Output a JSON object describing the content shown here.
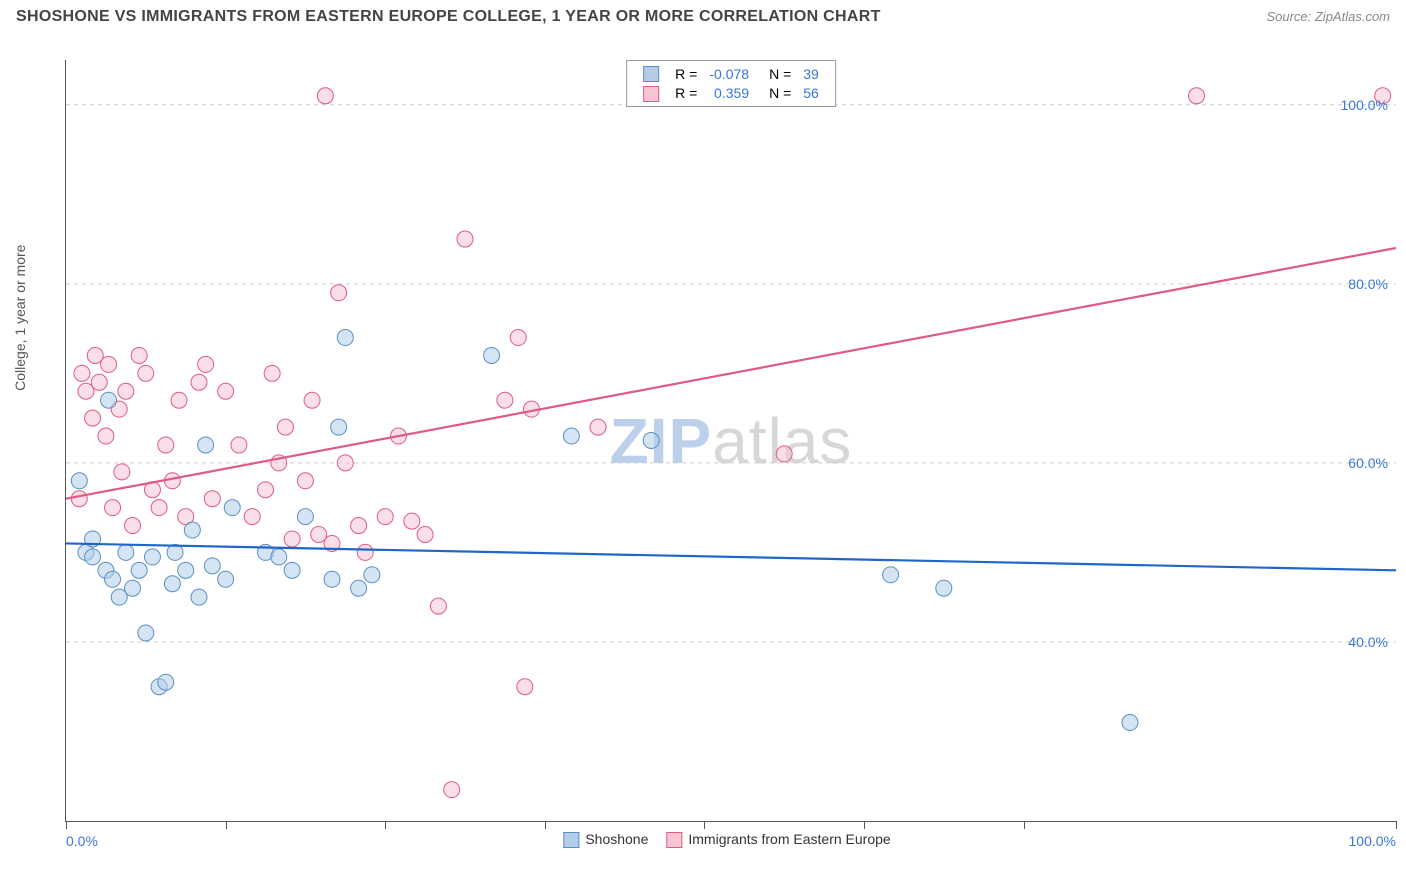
{
  "title": "SHOSHONE VS IMMIGRANTS FROM EASTERN EUROPE COLLEGE, 1 YEAR OR MORE CORRELATION CHART",
  "source": "Source: ZipAtlas.com",
  "ylabel": "College, 1 year or more",
  "watermark_a": "ZIP",
  "watermark_b": "atlas",
  "colors": {
    "series_a_fill": "#b3cde8",
    "series_a_stroke": "#5a8fc7",
    "series_a_line": "#1f66c7",
    "series_b_fill": "#f6c6d2",
    "series_b_stroke": "#e05a86",
    "series_b_line": "#e05a86",
    "grid": "#cccccc",
    "axis": "#555555",
    "tick_text": "#3a76d6",
    "watermark_a": "#bcd0ec",
    "watermark_b": "#d7d7d7"
  },
  "marker_radius": 8,
  "marker_opacity": 0.55,
  "x_domain": [
    0,
    100
  ],
  "y_domain": [
    20,
    105
  ],
  "y_ticks": [
    {
      "v": 40,
      "label": "40.0%"
    },
    {
      "v": 60,
      "label": "60.0%"
    },
    {
      "v": 80,
      "label": "80.0%"
    },
    {
      "v": 100,
      "label": "100.0%"
    }
  ],
  "x_ticks": [
    {
      "v": 0,
      "label": "0.0%"
    },
    {
      "v": 12,
      "label": ""
    },
    {
      "v": 24,
      "label": ""
    },
    {
      "v": 36,
      "label": ""
    },
    {
      "v": 48,
      "label": ""
    },
    {
      "v": 60,
      "label": ""
    },
    {
      "v": 72,
      "label": ""
    },
    {
      "v": 100,
      "label": "100.0%"
    }
  ],
  "legend_top": [
    {
      "sw": "a",
      "r_label": "R =",
      "r_val": "-0.078",
      "n_label": "N =",
      "n_val": "39"
    },
    {
      "sw": "b",
      "r_label": "R =",
      "r_val": "0.359",
      "n_label": "N =",
      "n_val": "56"
    }
  ],
  "legend_bottom": [
    {
      "sw": "a",
      "label": "Shoshone"
    },
    {
      "sw": "b",
      "label": "Immigrants from Eastern Europe"
    }
  ],
  "series_a_points": [
    [
      1,
      58
    ],
    [
      1.5,
      50
    ],
    [
      2,
      51.5
    ],
    [
      2,
      49.5
    ],
    [
      3,
      48
    ],
    [
      3.2,
      67
    ],
    [
      3.5,
      47
    ],
    [
      4,
      45
    ],
    [
      4.5,
      50
    ],
    [
      5,
      46
    ],
    [
      5.5,
      48
    ],
    [
      6,
      41
    ],
    [
      6.5,
      49.5
    ],
    [
      7,
      35
    ],
    [
      7.5,
      35.5
    ],
    [
      8,
      46.5
    ],
    [
      8.2,
      50
    ],
    [
      9,
      48
    ],
    [
      9.5,
      52.5
    ],
    [
      10,
      45
    ],
    [
      10.5,
      62
    ],
    [
      11,
      48.5
    ],
    [
      12,
      47
    ],
    [
      12.5,
      55
    ],
    [
      15,
      50
    ],
    [
      16,
      49.5
    ],
    [
      17,
      48
    ],
    [
      18,
      54
    ],
    [
      20,
      47
    ],
    [
      20.5,
      64
    ],
    [
      21,
      74
    ],
    [
      22,
      46
    ],
    [
      23,
      47.5
    ],
    [
      32,
      72
    ],
    [
      38,
      63
    ],
    [
      44,
      62.5
    ],
    [
      62,
      47.5
    ],
    [
      66,
      46
    ],
    [
      80,
      31
    ]
  ],
  "series_b_points": [
    [
      1,
      56
    ],
    [
      1.2,
      70
    ],
    [
      1.5,
      68
    ],
    [
      2,
      65
    ],
    [
      2.2,
      72
    ],
    [
      2.5,
      69
    ],
    [
      3,
      63
    ],
    [
      3.2,
      71
    ],
    [
      3.5,
      55
    ],
    [
      4,
      66
    ],
    [
      4.2,
      59
    ],
    [
      4.5,
      68
    ],
    [
      5,
      53
    ],
    [
      5.5,
      72
    ],
    [
      6,
      70
    ],
    [
      6.5,
      57
    ],
    [
      7,
      55
    ],
    [
      7.5,
      62
    ],
    [
      8,
      58
    ],
    [
      8.5,
      67
    ],
    [
      9,
      54
    ],
    [
      10,
      69
    ],
    [
      10.5,
      71
    ],
    [
      11,
      56
    ],
    [
      12,
      68
    ],
    [
      13,
      62
    ],
    [
      14,
      54
    ],
    [
      15,
      57
    ],
    [
      15.5,
      70
    ],
    [
      16,
      60
    ],
    [
      16.5,
      64
    ],
    [
      17,
      51.5
    ],
    [
      18,
      58
    ],
    [
      18.5,
      67
    ],
    [
      19,
      52
    ],
    [
      19.5,
      101
    ],
    [
      20,
      51
    ],
    [
      20.5,
      79
    ],
    [
      21,
      60
    ],
    [
      22,
      53
    ],
    [
      22.5,
      50
    ],
    [
      24,
      54
    ],
    [
      25,
      63
    ],
    [
      26,
      53.5
    ],
    [
      27,
      52
    ],
    [
      28,
      44
    ],
    [
      29,
      23.5
    ],
    [
      30,
      85
    ],
    [
      33,
      67
    ],
    [
      34,
      74
    ],
    [
      34.5,
      35
    ],
    [
      35,
      66
    ],
    [
      40,
      64
    ],
    [
      54,
      61
    ],
    [
      85,
      101
    ],
    [
      99,
      101
    ]
  ],
  "series_a_trend": {
    "x1": 0,
    "y1": 51,
    "x2": 100,
    "y2": 48
  },
  "series_b_trend": {
    "x1": 0,
    "y1": 56,
    "x2": 100,
    "y2": 84
  }
}
